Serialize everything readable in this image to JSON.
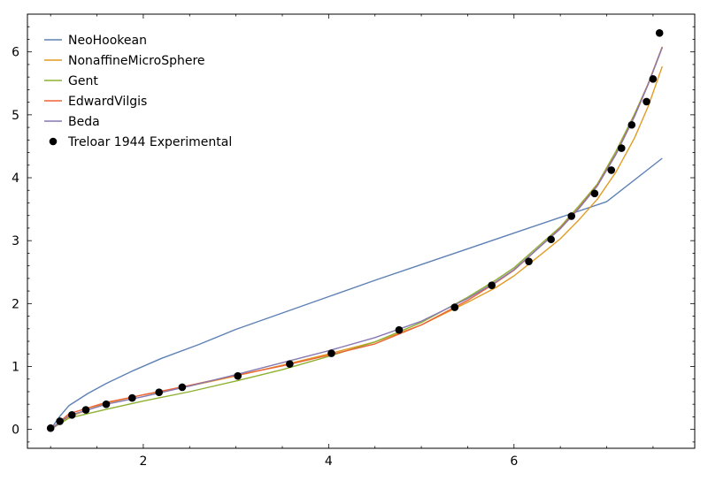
{
  "chart_data": {
    "type": "line",
    "title": "",
    "xlabel": "",
    "ylabel": "",
    "xlim": [
      0.75,
      7.95
    ],
    "ylim": [
      -0.3,
      6.6
    ],
    "xticks": [
      2,
      4,
      6
    ],
    "yticks": [
      0,
      1,
      2,
      3,
      4,
      5,
      6
    ],
    "grid": false,
    "legend_position": "top-left",
    "series": [
      {
        "name": "NeoHookean",
        "kind": "line",
        "color": "#5E81B5",
        "x": [
          1.0,
          1.1,
          1.2,
          1.4,
          1.6,
          1.9,
          2.2,
          2.6,
          3.0,
          3.5,
          4.0,
          4.5,
          5.0,
          5.5,
          6.0,
          6.5,
          7.0,
          7.6
        ],
        "y": [
          0.0,
          0.21,
          0.38,
          0.57,
          0.73,
          0.94,
          1.13,
          1.35,
          1.59,
          1.85,
          2.11,
          2.37,
          2.62,
          2.87,
          3.12,
          3.37,
          3.62,
          4.31
        ]
      },
      {
        "name": "NonaffineMicroSphere",
        "kind": "line",
        "color": "#E19C24",
        "x": [
          1.0,
          1.2,
          1.6,
          2.0,
          2.5,
          3.0,
          3.5,
          4.0,
          4.5,
          5.0,
          5.5,
          5.8,
          6.0,
          6.3,
          6.5,
          6.7,
          6.9,
          7.1,
          7.3,
          7.45,
          7.6
        ],
        "y": [
          0.0,
          0.2,
          0.42,
          0.55,
          0.69,
          0.85,
          1.02,
          1.2,
          1.39,
          1.66,
          2.02,
          2.25,
          2.44,
          2.79,
          3.03,
          3.33,
          3.66,
          4.09,
          4.63,
          5.14,
          5.77
        ]
      },
      {
        "name": "Gent",
        "kind": "line",
        "color": "#8FB032",
        "x": [
          1.0,
          1.2,
          1.6,
          2.0,
          2.5,
          3.0,
          3.5,
          4.0,
          4.5,
          5.0,
          5.5,
          5.8,
          6.0,
          6.3,
          6.5,
          6.7,
          6.9,
          7.1,
          7.3,
          7.45,
          7.6
        ],
        "y": [
          0.0,
          0.18,
          0.32,
          0.45,
          0.6,
          0.77,
          0.95,
          1.16,
          1.39,
          1.7,
          2.1,
          2.37,
          2.57,
          2.96,
          3.22,
          3.55,
          3.9,
          4.42,
          5.01,
          5.5,
          6.08
        ]
      },
      {
        "name": "EdwardVilgis",
        "kind": "line",
        "color": "#EB6235",
        "x": [
          1.0,
          1.2,
          1.6,
          2.0,
          2.5,
          3.0,
          3.5,
          4.0,
          4.5,
          5.0,
          5.5,
          5.8,
          6.0,
          6.3,
          6.5,
          6.7,
          6.9,
          7.1,
          7.3,
          7.45,
          7.6
        ],
        "y": [
          0.0,
          0.25,
          0.43,
          0.55,
          0.7,
          0.86,
          1.01,
          1.18,
          1.36,
          1.66,
          2.05,
          2.33,
          2.53,
          2.93,
          3.2,
          3.52,
          3.88,
          4.38,
          4.98,
          5.5,
          6.08
        ]
      },
      {
        "name": "Beda",
        "kind": "line",
        "color": "#8778B3",
        "x": [
          1.0,
          1.2,
          1.6,
          2.0,
          2.5,
          3.0,
          3.5,
          4.0,
          4.5,
          5.0,
          5.5,
          5.8,
          6.0,
          6.3,
          6.5,
          6.7,
          6.9,
          7.1,
          7.3,
          7.45,
          7.6
        ],
        "y": [
          0.0,
          0.22,
          0.4,
          0.52,
          0.69,
          0.87,
          1.06,
          1.25,
          1.46,
          1.72,
          2.08,
          2.34,
          2.54,
          2.93,
          3.19,
          3.51,
          3.87,
          4.37,
          4.97,
          5.49,
          6.07
        ]
      },
      {
        "name": "Treloar 1944 Experimental",
        "kind": "scatter",
        "color": "#000000",
        "x": [
          1.0,
          1.1,
          1.23,
          1.38,
          1.6,
          1.88,
          2.17,
          2.42,
          3.02,
          3.58,
          4.03,
          4.76,
          5.36,
          5.76,
          6.16,
          6.4,
          6.62,
          6.87,
          7.05,
          7.16,
          7.27,
          7.43,
          7.5,
          7.57
        ],
        "y": [
          0.02,
          0.13,
          0.23,
          0.31,
          0.4,
          0.5,
          0.59,
          0.67,
          0.85,
          1.04,
          1.21,
          1.58,
          1.94,
          2.29,
          2.67,
          3.02,
          3.39,
          3.75,
          4.12,
          4.47,
          4.84,
          5.21,
          5.57,
          6.3
        ]
      }
    ]
  }
}
